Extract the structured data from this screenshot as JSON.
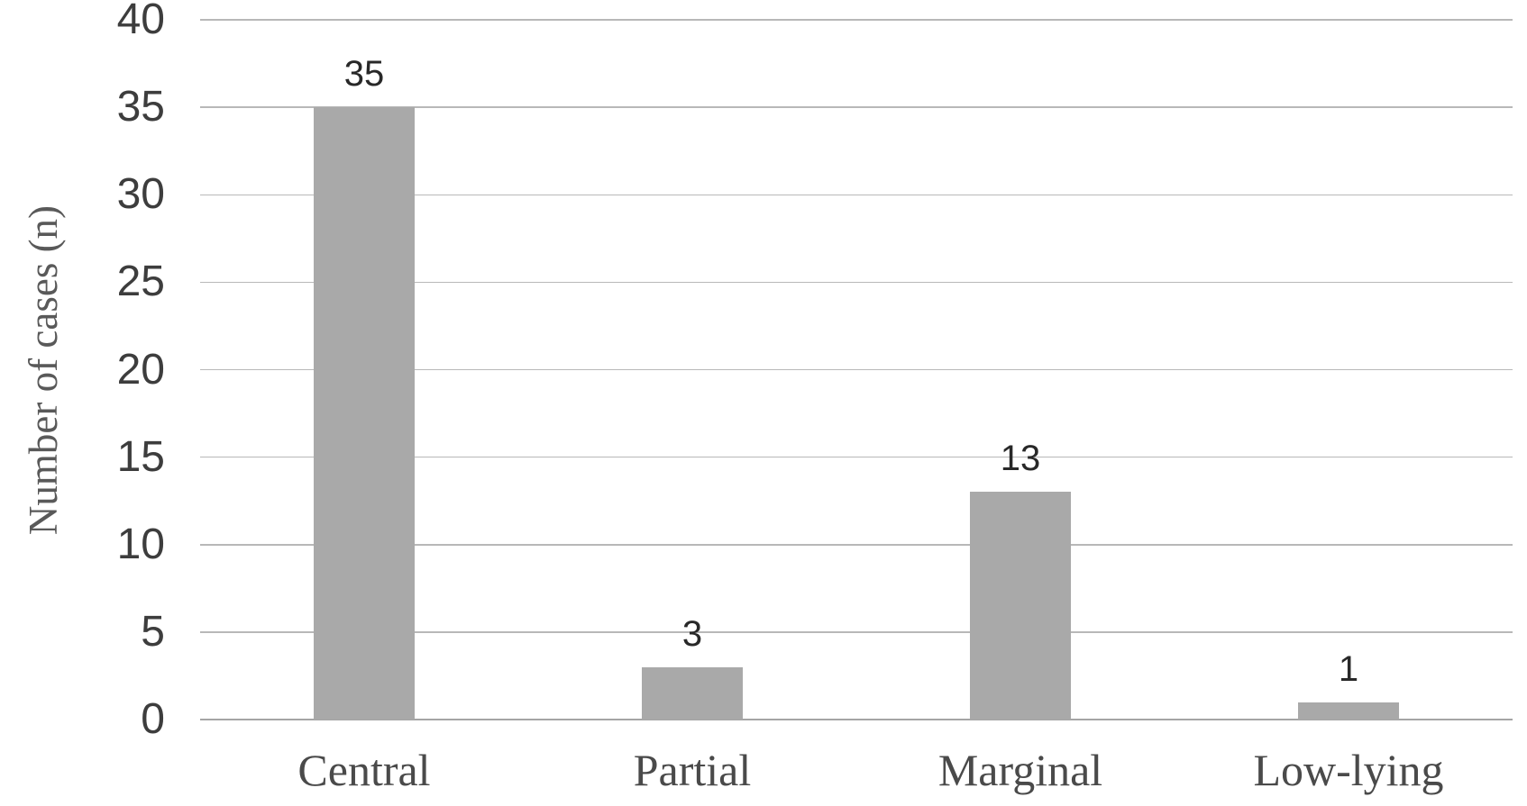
{
  "chart_data": {
    "type": "bar",
    "title": "",
    "xlabel": "",
    "ylabel": "Number of cases (n)",
    "categories": [
      "Central",
      "Partial",
      "Marginal",
      "Low-lying"
    ],
    "values": [
      35,
      3,
      13,
      1
    ],
    "data_labels": [
      "35",
      "3",
      "13",
      "1"
    ],
    "ylim": [
      0,
      40
    ],
    "ytick_step": 5,
    "yticks": [
      0,
      5,
      10,
      15,
      20,
      25,
      30,
      35,
      40
    ],
    "grid": "horizontal",
    "legend": "none",
    "colors": {
      "bar_fill": "#a9a9a9",
      "gridline": "#b8b8b8",
      "axis_line": "#a5a5a5",
      "tick_label": "#3d3d3d",
      "data_label": "#282828",
      "category_label": "#4a4a4a",
      "axis_title": "#595959",
      "background": "#ffffff"
    }
  }
}
